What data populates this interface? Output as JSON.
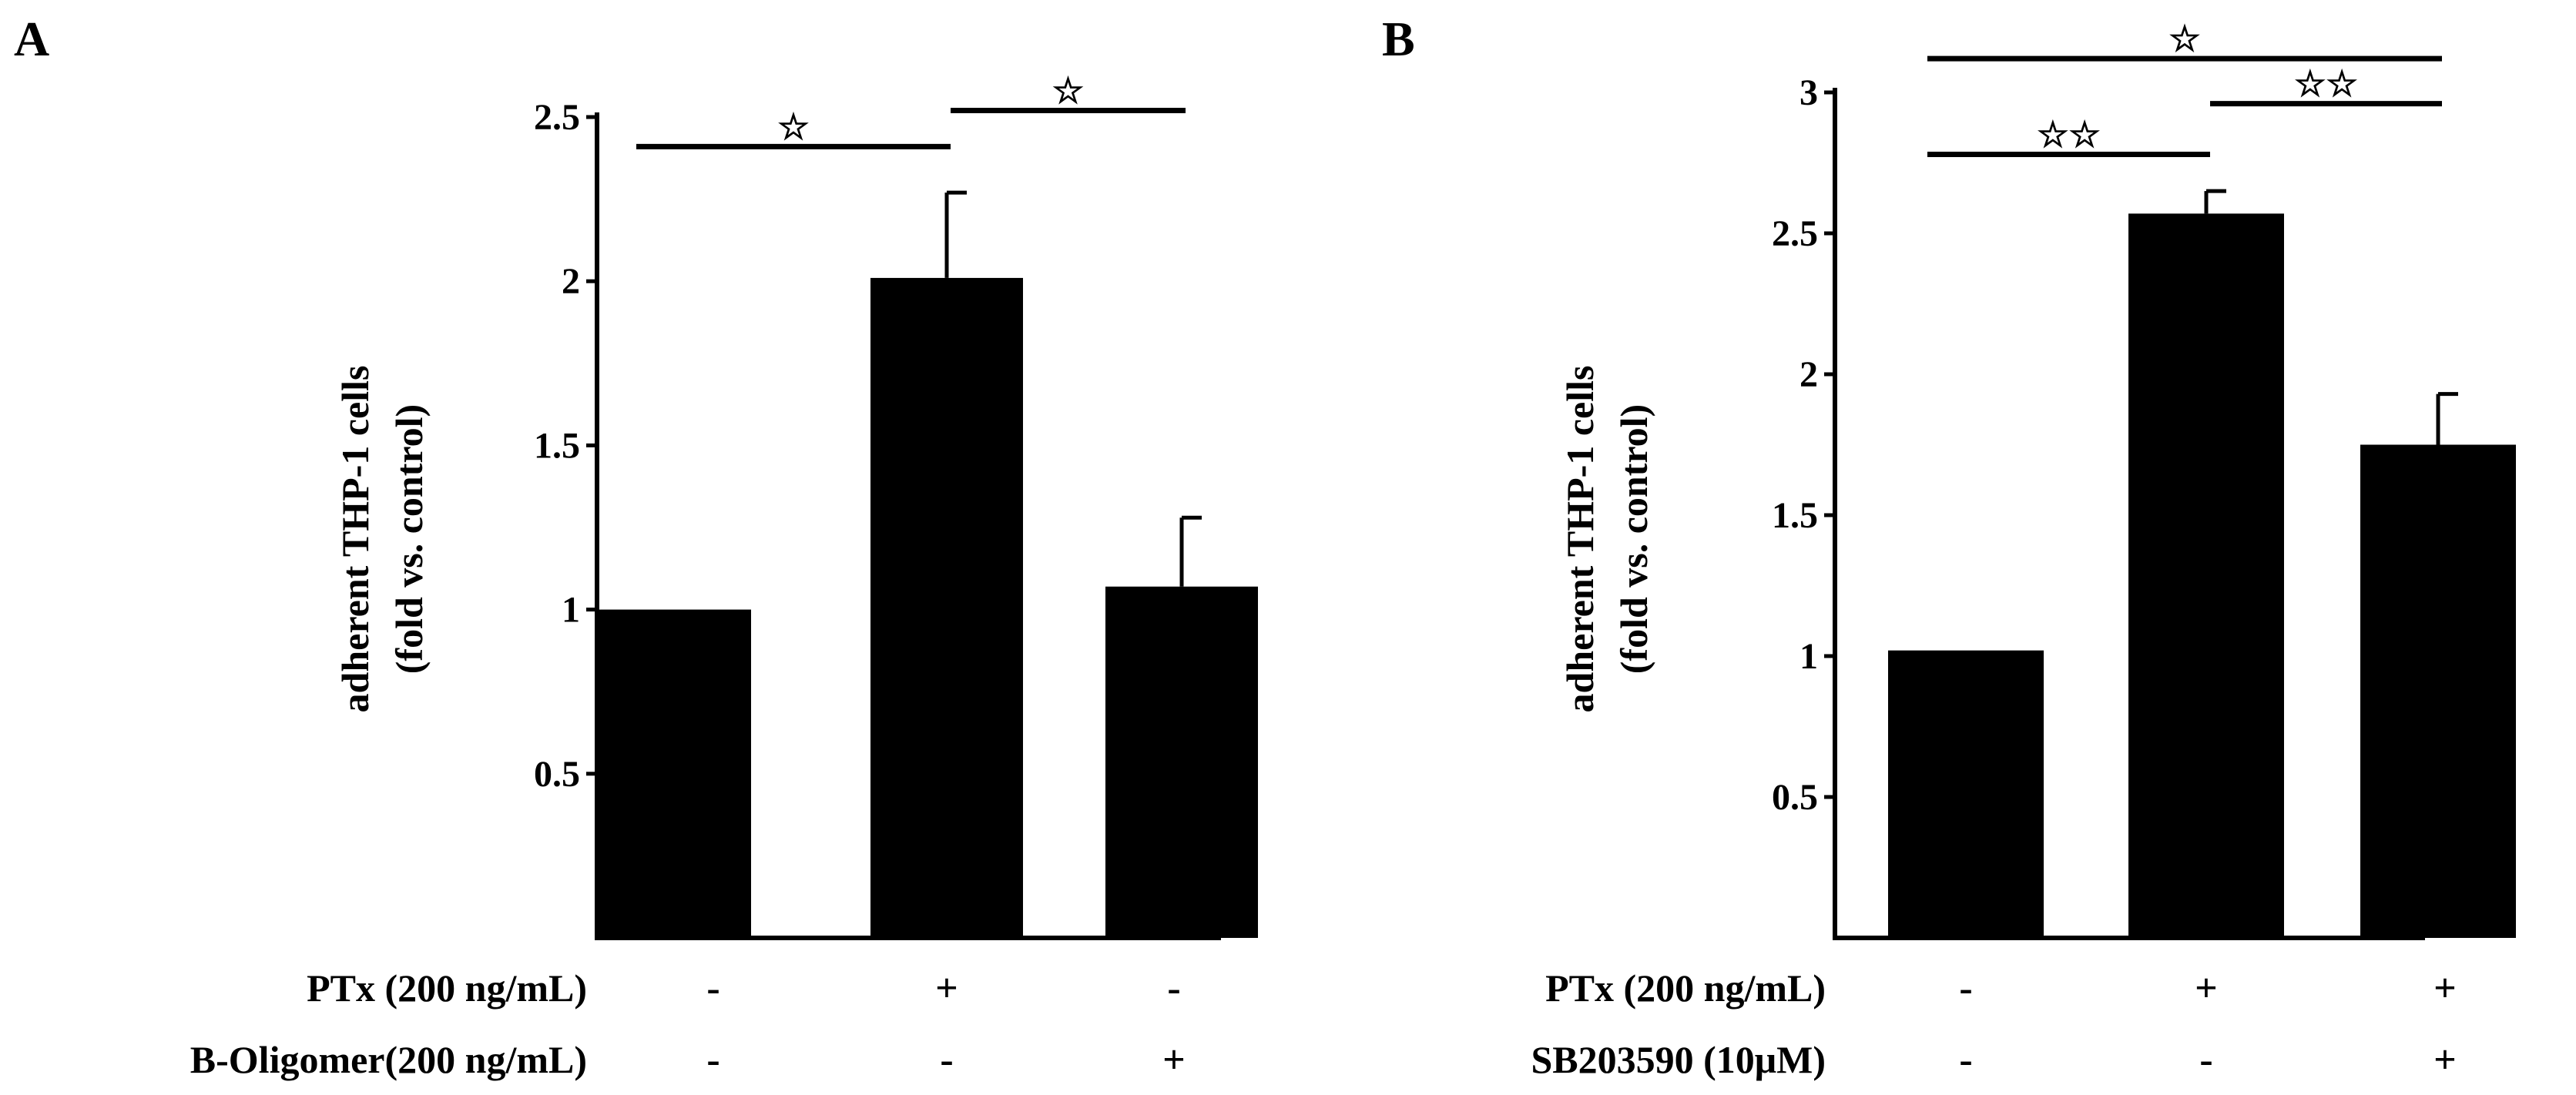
{
  "figure": {
    "panels": [
      {
        "letter": "A"
      },
      {
        "letter": "B"
      }
    ]
  },
  "chart_data": [
    {
      "panel": "A",
      "type": "bar",
      "title": "",
      "xlabel": "",
      "ylabel_lines": [
        "adherent THP-1 cells",
        "(fold vs. control)"
      ],
      "ylim": [
        0,
        2.5
      ],
      "yticks": [
        0.5,
        1,
        1.5,
        2,
        2.5
      ],
      "ytick_labels": [
        "0.5",
        "1",
        "1.5",
        "2",
        "2.5"
      ],
      "grid": false,
      "bar_color": "#000000",
      "categories": [
        "PTx- / B-Oligomer-",
        "PTx+ / B-Oligomer-",
        "PTx- / B-Oligomer+"
      ],
      "values": [
        1.0,
        2.01,
        1.07
      ],
      "errors": [
        0.0,
        0.26,
        0.21
      ],
      "treatments": [
        {
          "label": "PTx (200 ng/mL)",
          "signs": [
            "-",
            "+",
            "-"
          ]
        },
        {
          "label": "B-Oligomer(200 ng/mL)",
          "signs": [
            "-",
            "-",
            "+"
          ]
        }
      ],
      "significance": [
        {
          "from": 0,
          "to": 1,
          "y": 2.41,
          "mark": "☆"
        },
        {
          "from": 1,
          "to": 2,
          "y": 2.52,
          "mark": "☆"
        }
      ]
    },
    {
      "panel": "B",
      "type": "bar",
      "title": "",
      "xlabel": "",
      "ylabel_lines": [
        "adherent THP-1 cells",
        "(fold vs. control)"
      ],
      "ylim": [
        0,
        3
      ],
      "yticks": [
        0.5,
        1,
        1.5,
        2,
        2.5,
        3
      ],
      "ytick_labels": [
        "0.5",
        "1",
        "1.5",
        "2",
        "2.5",
        "3"
      ],
      "grid": false,
      "bar_color": "#000000",
      "categories": [
        "PTx- / SB203590-",
        "PTx+ / SB203590-",
        "PTx+ / SB203590+"
      ],
      "values": [
        1.02,
        2.57,
        1.75
      ],
      "errors": [
        0.0,
        0.08,
        0.18
      ],
      "treatments": [
        {
          "label": "PTx (200 ng/mL)",
          "signs": [
            "-",
            "+",
            "+"
          ]
        },
        {
          "label": "SB203590 (10μM)",
          "signs": [
            "-",
            "-",
            "+"
          ]
        }
      ],
      "significance": [
        {
          "from": 0,
          "to": 1,
          "y": 2.78,
          "mark": "☆☆"
        },
        {
          "from": 1,
          "to": 2,
          "y": 2.96,
          "mark": "☆☆"
        },
        {
          "from": 0,
          "to": 2,
          "y": 3.12,
          "mark": "☆"
        }
      ]
    }
  ]
}
